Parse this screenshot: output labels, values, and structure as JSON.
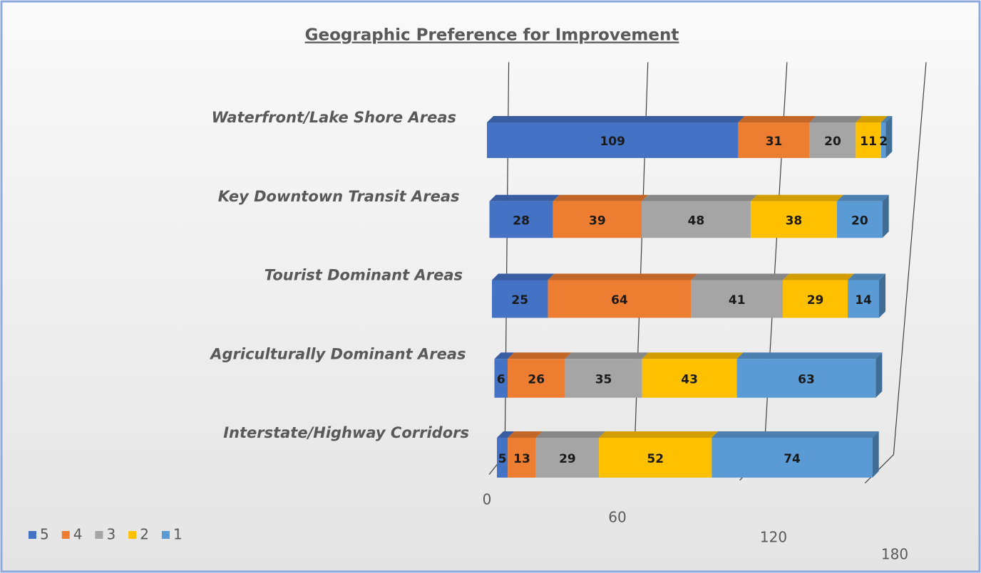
{
  "chart_data": {
    "type": "bar",
    "orientation": "horizontal",
    "stacked": true,
    "title": "Geographic Preference for Improvement",
    "categories": [
      "Waterfront/Lake Shore Areas",
      "Key Downtown Transit Areas",
      "Tourist Dominant Areas",
      "Agriculturally Dominant Areas",
      "Interstate/Highway Corridors"
    ],
    "series": [
      {
        "name": "5",
        "color": "#4472c4",
        "values": [
          109,
          28,
          25,
          6,
          5
        ]
      },
      {
        "name": "4",
        "color": "#ed7d31",
        "values": [
          31,
          39,
          64,
          26,
          13
        ]
      },
      {
        "name": "3",
        "color": "#a5a5a5",
        "values": [
          20,
          48,
          41,
          35,
          29
        ]
      },
      {
        "name": "2",
        "color": "#ffc000",
        "values": [
          11,
          38,
          29,
          43,
          52
        ]
      },
      {
        "name": "1",
        "color": "#5b9bd5",
        "values": [
          2,
          20,
          14,
          63,
          74
        ]
      }
    ],
    "xlim": [
      0,
      180
    ],
    "xticks": [
      0,
      60,
      120,
      180
    ],
    "grid": true,
    "legend": "bottom-left"
  }
}
